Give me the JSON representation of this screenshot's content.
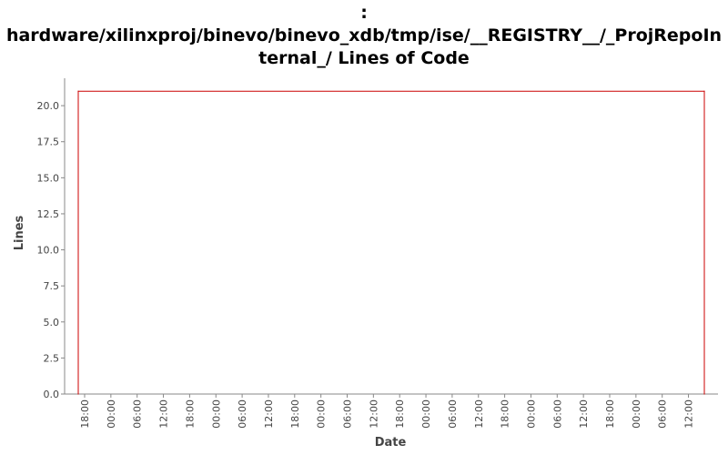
{
  "chart_data": {
    "type": "line",
    "title_lines": [
      ":",
      "hardware/xilinxproj/binevo/binevo_xdb/tmp/ise/__REGISTRY__/_ProjRepoIn",
      "ternal_/ Lines of Code"
    ],
    "xlabel": "Date",
    "ylabel": "Lines",
    "ylim": [
      0,
      21.9
    ],
    "yticks": [
      "0.0",
      "2.5",
      "5.0",
      "7.5",
      "10.0",
      "12.5",
      "15.0",
      "17.5",
      "20.0"
    ],
    "xticks": [
      "18:00",
      "00:00",
      "06:00",
      "12:00",
      "18:00",
      "00:00",
      "06:00",
      "12:00",
      "18:00",
      "00:00",
      "06:00",
      "12:00",
      "18:00",
      "00:00",
      "06:00",
      "12:00",
      "18:00",
      "00:00",
      "06:00",
      "12:00",
      "18:00",
      "00:00",
      "06:00",
      "12:00"
    ],
    "grid": false,
    "series": [
      {
        "color": "#cc0000",
        "points": [
          {
            "x": "18:00",
            "y": 0
          },
          {
            "x": "18:00",
            "y": 21
          },
          {
            "x": "12:00",
            "y": 21
          },
          {
            "x": "12:00",
            "y": 0
          }
        ]
      }
    ]
  }
}
